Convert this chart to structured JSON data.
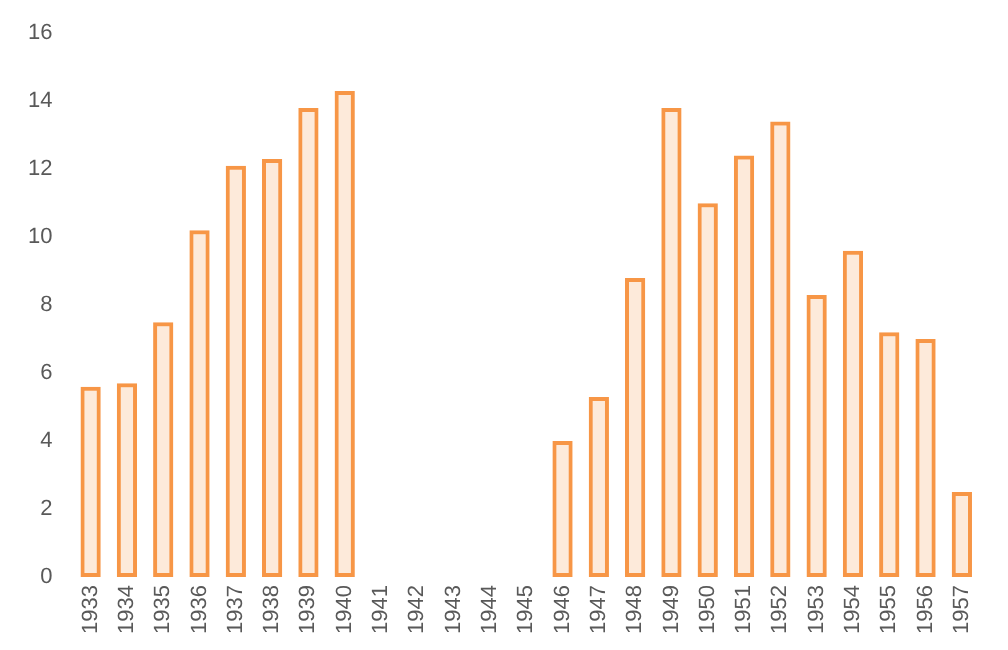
{
  "chart_data": {
    "type": "bar",
    "categories": [
      "1933",
      "1934",
      "1935",
      "1936",
      "1937",
      "1938",
      "1939",
      "1940",
      "1941",
      "1942",
      "1943",
      "1944",
      "1945",
      "1946",
      "1947",
      "1948",
      "1949",
      "1950",
      "1951",
      "1952",
      "1953",
      "1954",
      "1955",
      "1956",
      "1957"
    ],
    "series": [
      {
        "color": "#f79646",
        "values": [
          5.6,
          5.7,
          7.5,
          10.2,
          12.1,
          12.3,
          13.8,
          14.3,
          null,
          null,
          null,
          null,
          null,
          4.0,
          5.3,
          8.8,
          13.8,
          11.0,
          12.4,
          13.4,
          8.3,
          9.6,
          7.2,
          7.0,
          2.5
        ]
      }
    ],
    "ylim": [
      0,
      16
    ],
    "yticks": [
      0,
      2,
      4,
      6,
      8,
      10,
      12,
      14,
      16
    ],
    "grid": false,
    "legend": false
  }
}
